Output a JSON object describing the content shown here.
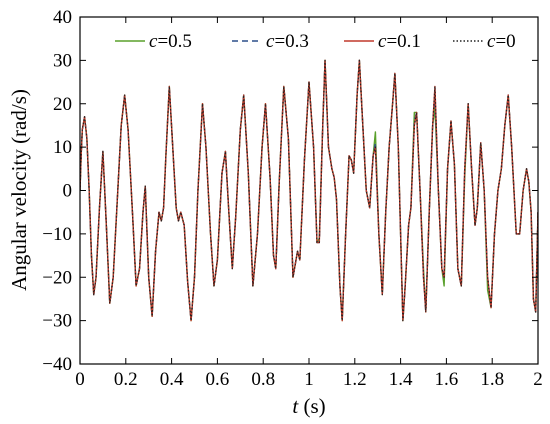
{
  "chart_data": {
    "type": "line",
    "xlabel_var": "t",
    "xlabel_unit": "(s)",
    "ylabel": "Angular velocity (rad/s)",
    "xlim": [
      0,
      2
    ],
    "ylim": [
      -40,
      40
    ],
    "x_ticks": [
      "0",
      "0.2",
      "0.4",
      "0.6",
      "0.8",
      "1",
      "1.2",
      "1.4",
      "1.6",
      "1.8",
      "2"
    ],
    "y_ticks": [
      "40",
      "30",
      "20",
      "10",
      "0",
      "−10",
      "−20",
      "−30",
      "−40"
    ],
    "grid": false,
    "legend_position": "top",
    "series": [
      {
        "name": "c=0.5",
        "label_var": "c",
        "label_rest": "=0.5",
        "color": "#5aa02c",
        "dash": "solid"
      },
      {
        "name": "c=0.3",
        "label_var": "c",
        "label_rest": "=0.3",
        "color": "#2b4f8a",
        "dash": "dashed"
      },
      {
        "name": "c=0.1",
        "label_var": "c",
        "label_rest": "=0.1",
        "color": "#c0392b",
        "dash": "solid"
      },
      {
        "name": "c=0",
        "label_var": "c",
        "label_rest": "=0",
        "color": "#222222",
        "dash": "dotted"
      }
    ],
    "base_points": [
      [
        0.0,
        0
      ],
      [
        0.005,
        8
      ],
      [
        0.01,
        14
      ],
      [
        0.02,
        17
      ],
      [
        0.03,
        12
      ],
      [
        0.04,
        0
      ],
      [
        0.05,
        -15
      ],
      [
        0.06,
        -24
      ],
      [
        0.07,
        -20
      ],
      [
        0.085,
        -4
      ],
      [
        0.1,
        9
      ],
      [
        0.115,
        -8
      ],
      [
        0.13,
        -26
      ],
      [
        0.145,
        -20
      ],
      [
        0.165,
        0
      ],
      [
        0.18,
        15
      ],
      [
        0.195,
        22
      ],
      [
        0.21,
        14
      ],
      [
        0.23,
        -6
      ],
      [
        0.245,
        -22
      ],
      [
        0.26,
        -18
      ],
      [
        0.275,
        -5
      ],
      [
        0.285,
        1
      ],
      [
        0.3,
        -20
      ],
      [
        0.315,
        -29
      ],
      [
        0.33,
        -14
      ],
      [
        0.345,
        -5
      ],
      [
        0.355,
        -7
      ],
      [
        0.365,
        -4
      ],
      [
        0.375,
        8
      ],
      [
        0.39,
        24
      ],
      [
        0.405,
        10
      ],
      [
        0.42,
        -4
      ],
      [
        0.43,
        -7
      ],
      [
        0.44,
        -5
      ],
      [
        0.455,
        -8
      ],
      [
        0.47,
        -21
      ],
      [
        0.485,
        -30
      ],
      [
        0.5,
        -20
      ],
      [
        0.515,
        0
      ],
      [
        0.535,
        20
      ],
      [
        0.55,
        10
      ],
      [
        0.57,
        -10
      ],
      [
        0.585,
        -22
      ],
      [
        0.6,
        -16
      ],
      [
        0.62,
        4
      ],
      [
        0.635,
        9
      ],
      [
        0.65,
        -5
      ],
      [
        0.665,
        -18
      ],
      [
        0.68,
        -6
      ],
      [
        0.7,
        14
      ],
      [
        0.715,
        22
      ],
      [
        0.735,
        4
      ],
      [
        0.755,
        -22
      ],
      [
        0.775,
        -10
      ],
      [
        0.795,
        10
      ],
      [
        0.81,
        20
      ],
      [
        0.83,
        3
      ],
      [
        0.845,
        -15
      ],
      [
        0.855,
        -18
      ],
      [
        0.87,
        2
      ],
      [
        0.89,
        24
      ],
      [
        0.91,
        12
      ],
      [
        0.93,
        -20
      ],
      [
        0.95,
        -14
      ],
      [
        0.96,
        -16
      ],
      [
        0.98,
        7
      ],
      [
        1.0,
        25
      ],
      [
        1.02,
        10
      ],
      [
        1.035,
        -12
      ],
      [
        1.045,
        -12
      ],
      [
        1.06,
        15
      ],
      [
        1.07,
        30
      ],
      [
        1.085,
        10
      ],
      [
        1.1,
        5
      ],
      [
        1.11,
        3
      ],
      [
        1.12,
        -2
      ],
      [
        1.135,
        -22
      ],
      [
        1.145,
        -30
      ],
      [
        1.16,
        -10
      ],
      [
        1.175,
        8
      ],
      [
        1.185,
        7
      ],
      [
        1.195,
        4
      ],
      [
        1.21,
        22
      ],
      [
        1.22,
        30
      ],
      [
        1.235,
        15
      ],
      [
        1.25,
        0
      ],
      [
        1.265,
        -4
      ],
      [
        1.28,
        8
      ],
      [
        1.29,
        10
      ],
      [
        1.305,
        -10
      ],
      [
        1.32,
        -24
      ],
      [
        1.335,
        -5
      ],
      [
        1.35,
        10
      ],
      [
        1.365,
        20
      ],
      [
        1.375,
        27
      ],
      [
        1.39,
        10
      ],
      [
        1.4,
        -10
      ],
      [
        1.41,
        -30
      ],
      [
        1.42,
        -22
      ],
      [
        1.435,
        -8
      ],
      [
        1.445,
        -4
      ],
      [
        1.46,
        15
      ],
      [
        1.47,
        18
      ],
      [
        1.485,
        0
      ],
      [
        1.5,
        -20
      ],
      [
        1.51,
        -28
      ],
      [
        1.525,
        -5
      ],
      [
        1.54,
        15
      ],
      [
        1.55,
        24
      ],
      [
        1.565,
        0
      ],
      [
        1.58,
        -18
      ],
      [
        1.59,
        -20
      ],
      [
        1.605,
        5
      ],
      [
        1.62,
        16
      ],
      [
        1.635,
        6
      ],
      [
        1.65,
        -18
      ],
      [
        1.665,
        -22
      ],
      [
        1.68,
        5
      ],
      [
        1.695,
        20
      ],
      [
        1.71,
        5
      ],
      [
        1.725,
        -8
      ],
      [
        1.735,
        -4
      ],
      [
        1.75,
        11
      ],
      [
        1.765,
        0
      ],
      [
        1.78,
        -20
      ],
      [
        1.795,
        -27
      ],
      [
        1.81,
        -10
      ],
      [
        1.825,
        0
      ],
      [
        1.84,
        5
      ],
      [
        1.855,
        15
      ],
      [
        1.87,
        22
      ],
      [
        1.885,
        10
      ],
      [
        1.905,
        -10
      ],
      [
        1.92,
        -10
      ],
      [
        1.935,
        0
      ],
      [
        1.95,
        5
      ],
      [
        1.96,
        2
      ],
      [
        1.97,
        -5
      ],
      [
        1.98,
        -25
      ],
      [
        1.99,
        -28
      ],
      [
        2.0,
        -5
      ]
    ],
    "variations": {
      "c=0.5": [
        [
          1.295,
          3.5
        ],
        [
          1.46,
          3
        ],
        [
          1.555,
          -5
        ],
        [
          1.59,
          -2
        ],
        [
          1.685,
          -2
        ],
        [
          1.785,
          -3
        ],
        [
          1.5,
          2
        ],
        [
          1.045,
          1
        ]
      ],
      "c=0.3": [
        [
          1.46,
          1
        ],
        [
          1.555,
          -2
        ],
        [
          1.29,
          1
        ]
      ],
      "c=0.1": [],
      "c=0": []
    }
  }
}
